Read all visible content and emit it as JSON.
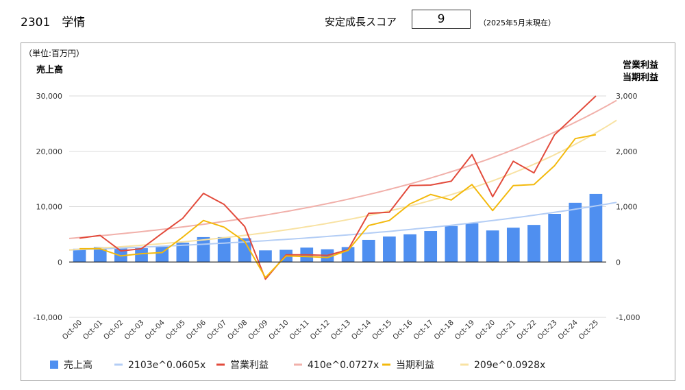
{
  "header": {
    "company": "2301　学情",
    "score_label": "安定成長スコア",
    "score_value": "9",
    "score_date": "（2025年5月末現在）"
  },
  "colors": {
    "sales": "#4f8ff0",
    "sales_trend": "#b3cdf5",
    "op": "#e24a3b",
    "op_trend": "#f1b0aa",
    "np": "#f3b90c",
    "np_trend": "#f8e2a2",
    "grid": "#d9d9d9",
    "zero": "#222222"
  },
  "chart_data": {
    "type": "bar",
    "unit_label": "（単位:百万円）",
    "left_axis_title": "売上高",
    "right_axis_title_1": "営業利益",
    "right_axis_title_2": "当期利益",
    "categories": [
      "Oct-00",
      "Oct-01",
      "Oct-02",
      "Oct-03",
      "Oct-04",
      "Oct-05",
      "Oct-06",
      "Oct-07",
      "Oct-08",
      "Oct-09",
      "Oct-10",
      "Oct-11",
      "Oct-12",
      "Oct-13",
      "Oct-14",
      "Oct-15",
      "Oct-16",
      "Oct-17",
      "Oct-18",
      "Oct-19",
      "Oct-20",
      "Oct-21",
      "Oct-22",
      "Oct-23",
      "Oct-24",
      "Oct-25"
    ],
    "left_ylim": [
      -10000,
      30000
    ],
    "right_ylim": [
      -1000,
      3000
    ],
    "left_ticks": [
      "30,000",
      "20,000",
      "10,000",
      "0",
      "-10,000"
    ],
    "right_ticks": [
      "3,000",
      "2,000",
      "1,000",
      "0",
      "-1,000"
    ],
    "series": [
      {
        "name": "売上高",
        "kind": "bar",
        "axis": "left",
        "values": [
          2400,
          2700,
          2500,
          2500,
          2800,
          3500,
          4500,
          4500,
          4300,
          2100,
          2200,
          2600,
          2300,
          2700,
          4000,
          4600,
          5000,
          5600,
          6500,
          7000,
          5700,
          6200,
          6700,
          8700,
          10700,
          12300
        ]
      },
      {
        "name": "営業利益",
        "kind": "line",
        "axis": "right",
        "values": [
          430,
          480,
          200,
          240,
          520,
          790,
          1240,
          1040,
          640,
          -310,
          130,
          130,
          120,
          220,
          880,
          900,
          1380,
          1390,
          1460,
          1940,
          1180,
          1820,
          1610,
          2300,
          2650,
          3000
        ]
      },
      {
        "name": "当期利益",
        "kind": "line",
        "axis": "right",
        "values": [
          240,
          240,
          110,
          150,
          170,
          450,
          750,
          630,
          370,
          -280,
          110,
          100,
          80,
          210,
          660,
          750,
          1050,
          1220,
          1120,
          1400,
          930,
          1380,
          1400,
          1740,
          2230,
          2300
        ]
      }
    ],
    "trends": [
      {
        "name": "2103e^0.0605x",
        "axis": "left",
        "a": 2103,
        "b": 0.0605
      },
      {
        "name": "410e^0.0727x",
        "axis": "right",
        "a": 410,
        "b": 0.0727
      },
      {
        "name": "209e^0.0928x",
        "axis": "right",
        "a": 209,
        "b": 0.0928
      }
    ],
    "legend_position": "bottom",
    "grid": true
  }
}
